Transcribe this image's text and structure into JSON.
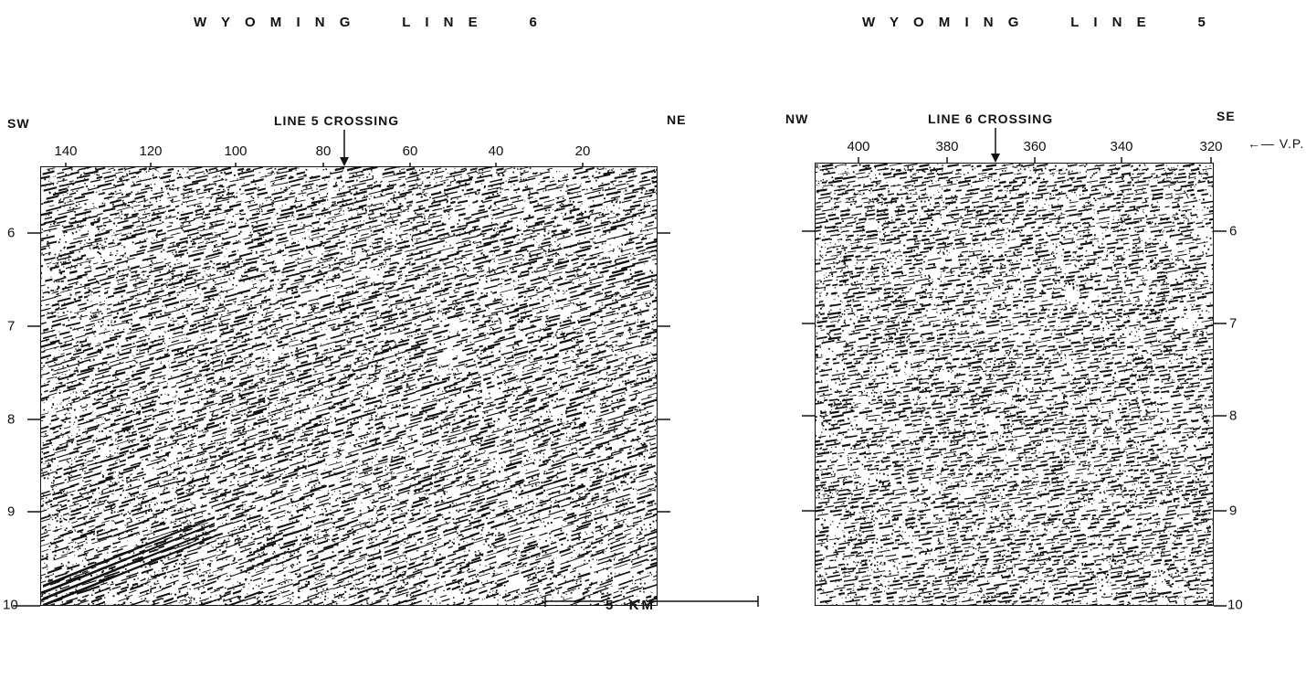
{
  "left_panel": {
    "title": "W Y O M I N G     L I N E     6",
    "left_dir": "SW",
    "right_dir": "NE",
    "crossing_label": "LINE 5 CROSSING",
    "vp_ticks": [
      "140",
      "120",
      "100",
      "80",
      "60",
      "40",
      "20"
    ],
    "depth_ticks": [
      "6",
      "7",
      "8",
      "9",
      "10"
    ]
  },
  "right_panel": {
    "title": "W Y O M I N G     L I N E     5",
    "left_dir": "NW",
    "right_dir": "SE",
    "crossing_label": "LINE 6 CROSSING",
    "vp_ticks": [
      "400",
      "380",
      "360",
      "340",
      "320"
    ],
    "vp_label": "V.P.",
    "depth_ticks": [
      "6",
      "7",
      "8",
      "9",
      "10"
    ]
  },
  "scale_bar": {
    "label": "5  KM"
  },
  "colors": {
    "ink": "#111111",
    "paper": "#ffffff"
  }
}
